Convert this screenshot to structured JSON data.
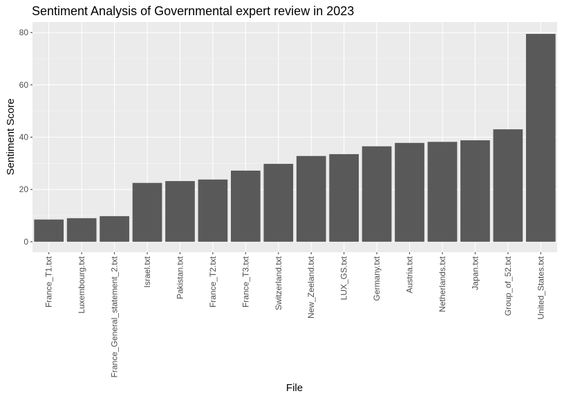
{
  "chart_data": {
    "type": "bar",
    "title": "Sentiment Analysis of Governmental expert review in 2023",
    "xlabel": "File",
    "ylabel": "Sentiment Score",
    "categories": [
      "France_T1.txt",
      "Luxembourg.txt",
      "France_General_statement_2.txt",
      "Israel.txt",
      "Pakistan.txt",
      "France_T2.txt",
      "France_T3.txt",
      "Switzerland.txt",
      "New_Zeeland.txt",
      "LUX_GS.txt",
      "Germany.txt",
      "Austria.txt",
      "Netherlands.txt",
      "Japan.txt",
      "Group_of_52.txt",
      "United_States.txt"
    ],
    "values": [
      8.5,
      9,
      9.8,
      22.5,
      23.2,
      23.8,
      27.2,
      29.8,
      32.8,
      33.5,
      36.5,
      37.8,
      38.2,
      38.8,
      43,
      79.5
    ],
    "ylim": [
      -4,
      84
    ],
    "yticks": [
      0,
      20,
      40,
      60,
      80
    ],
    "grid": true,
    "legend": "none",
    "colors": {
      "bar": "#595959",
      "panel": "#ebebeb",
      "grid_major": "#ffffff",
      "grid_minor": "#f5f5f5",
      "tick_text": "#4d4d4d",
      "tick_mark": "#333333"
    }
  }
}
